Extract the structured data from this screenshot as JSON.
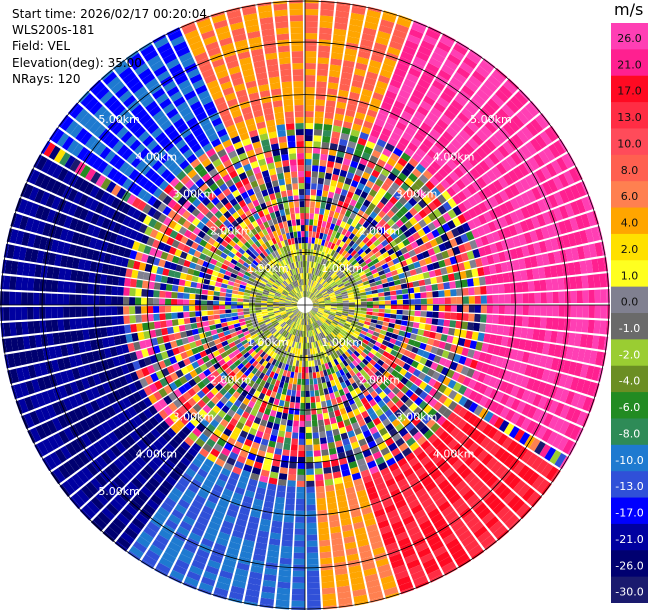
{
  "header": {
    "start_time": "Start time: 2026/02/17 00:20:04",
    "station": "WLS200s-181",
    "field": "Field: VEL",
    "elevation": "Elevation(deg): 35.00",
    "nrays": "NRays: 120"
  },
  "ppi": {
    "nrays": 120,
    "range_rings_km": [
      1,
      2,
      3,
      4,
      5
    ],
    "ring_labels_upper_left": [
      "5.00km",
      "4.00km",
      "3.00km",
      "2.00km",
      "1.00km"
    ],
    "ring_labels_upper_right": [
      "5.00km",
      "4.00km",
      "3.00km",
      "2.00km",
      "1.00km"
    ],
    "ring_labels_lower_left": [
      "1.00km",
      "2.00km",
      "3.00km",
      "4.00km",
      "5.00km"
    ],
    "ring_labels_lower_right": [
      "1.00km",
      "2.00km",
      "3.00km",
      "4.00km"
    ]
  },
  "colorbar": {
    "unit": "m/s",
    "ticks": [
      "26.0",
      "21.0",
      "17.0",
      "13.0",
      "10.0",
      "8.0",
      "6.0",
      "4.0",
      "2.0",
      "1.0",
      "0.0",
      "-1.0",
      "-2.0",
      "-4.0",
      "-6.0",
      "-8.0",
      "-10.0",
      "-13.0",
      "-17.0",
      "-21.0",
      "-26.0",
      "-30.0"
    ],
    "colors": [
      "#ff3fb4",
      "#ff2090",
      "#ff0a22",
      "#ff2d44",
      "#ff4b5a",
      "#ff6050",
      "#ff8050",
      "#ffa500",
      "#ffe000",
      "#ffff20",
      "#808090",
      "#6a6a6a",
      "#9acd32",
      "#6b8e23",
      "#228b22",
      "#2e8b57",
      "#1e7ad0",
      "#3050d8",
      "#0000ff",
      "#0000a0",
      "#000070",
      "#1a1a6e"
    ]
  }
}
